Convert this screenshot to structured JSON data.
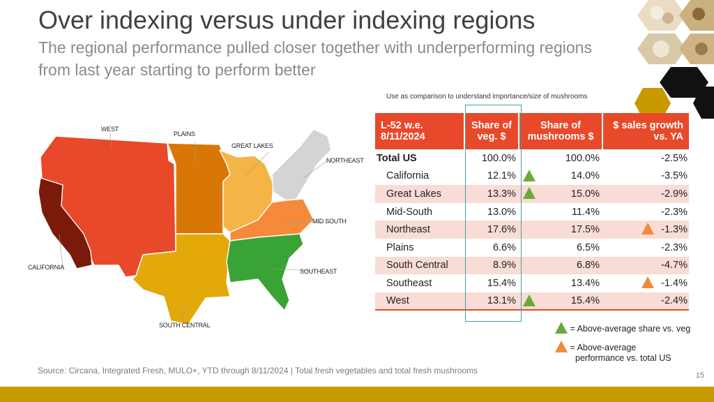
{
  "slide": {
    "title": "Over indexing versus under indexing regions",
    "subtitle": "The regional performance pulled closer together with underperforming regions from last year starting to perform better",
    "note": "Use as comparison to understand importance/size of mushrooms",
    "source": "Source: Circana, Integrated Fresh, MULO+, YTD through 8/11/2024 | Total fresh vegetables and total fresh mushrooms",
    "page_number": "15"
  },
  "map": {
    "labels": {
      "west": "WEST",
      "plains": "PLAINS",
      "great_lakes": "GREAT LAKES",
      "northeast": "NORTHEAST",
      "mid_south": "MID SOUTH",
      "california": "CALIFORNIA",
      "southeast": "SOUTHEAST",
      "south_central": "SOUTH CENTRAL"
    },
    "colors": {
      "west": "#e8492a",
      "california": "#7a1a0a",
      "plains": "#d97706",
      "great_lakes": "#f5b546",
      "northeast": "#d4d4d4",
      "mid_south": "#f48a3a",
      "south_central": "#e3a90b",
      "southeast": "#3aa335"
    }
  },
  "table": {
    "headers": [
      "L-52 w.e. 8/11/2024",
      "Share of veg. $",
      "Share of mushrooms $",
      "$ sales growth vs. YA"
    ],
    "total": {
      "region": "Total US",
      "veg": "100.0%",
      "mushrooms": "100.0%",
      "growth": "-2.5%"
    },
    "rows": [
      {
        "region": "California",
        "veg": "12.1%",
        "mushrooms": "14.0%",
        "growth": "-3.5%",
        "above_share": true,
        "above_perf": false
      },
      {
        "region": "Great Lakes",
        "veg": "13.3%",
        "mushrooms": "15.0%",
        "growth": "-2.9%",
        "above_share": true,
        "above_perf": false
      },
      {
        "region": "Mid-South",
        "veg": "13.0%",
        "mushrooms": "11.4%",
        "growth": "-2.3%",
        "above_share": false,
        "above_perf": false
      },
      {
        "region": "Northeast",
        "veg": "17.6%",
        "mushrooms": "17.5%",
        "growth": "-1.3%",
        "above_share": false,
        "above_perf": true
      },
      {
        "region": "Plains",
        "veg": "6.6%",
        "mushrooms": "6.5%",
        "growth": "-2.3%",
        "above_share": false,
        "above_perf": false
      },
      {
        "region": "South Central",
        "veg": "8.9%",
        "mushrooms": "6.8%",
        "growth": "-4.7%",
        "above_share": false,
        "above_perf": false
      },
      {
        "region": "Southeast",
        "veg": "15.4%",
        "mushrooms": "13.4%",
        "growth": "-1.4%",
        "above_share": false,
        "above_perf": true
      },
      {
        "region": "West",
        "veg": "13.1%",
        "mushrooms": "15.4%",
        "growth": "-2.4%",
        "above_share": true,
        "above_perf": false
      }
    ]
  },
  "legend": {
    "green_label": "= Above-average share vs. veg",
    "orange_label_line1": "= Above-average",
    "orange_label_line2": "performance vs. total US"
  }
}
